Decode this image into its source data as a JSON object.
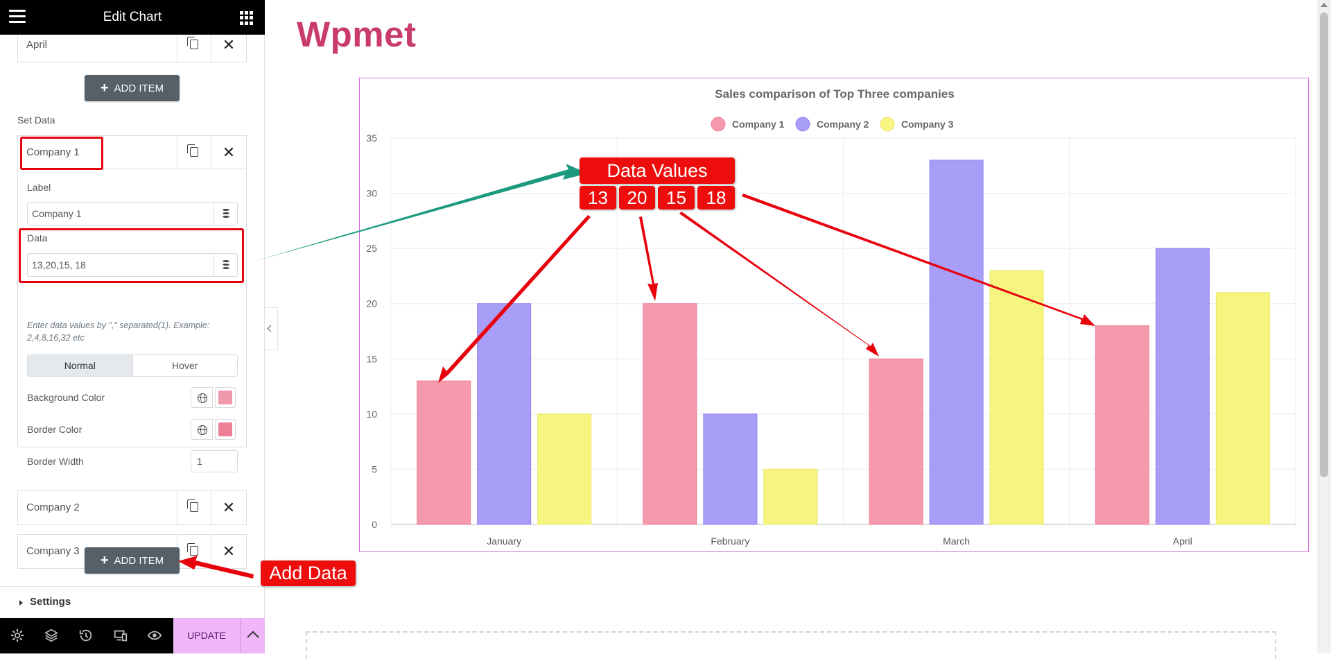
{
  "editor": {
    "title": "Edit Chart",
    "repeater_top": {
      "label": "April"
    },
    "add_item_label": "ADD ITEM",
    "set_data_heading": "Set Data",
    "active_item": {
      "header": "Company 1",
      "label_caption": "Label",
      "label_value": "Company 1",
      "data_caption": "Data",
      "data_value": "13,20,15, 18",
      "help_text": "Enter data values by \",\" separated(1). Example: 2,4,8,16,32 etc",
      "tabs": [
        "Normal",
        "Hover"
      ],
      "active_tab": "Normal",
      "background_color_label": "Background Color",
      "background_color": "#f199ac",
      "border_color_label": "Border Color",
      "border_color": "#ed7f97",
      "border_width_label": "Border Width",
      "border_width": "1"
    },
    "other_items": [
      {
        "label": "Company 2"
      },
      {
        "label": "Company 3"
      }
    ],
    "settings_label": "Settings",
    "update_label": "UPDATE"
  },
  "site": {
    "brand": "Wpmet"
  },
  "annotations": {
    "data_values_title": "Data Values",
    "data_values": [
      "13",
      "20",
      "15",
      "18"
    ],
    "add_data": "Add Data"
  },
  "chart_data": {
    "type": "bar",
    "title": "Sales comparison of Top Three companies",
    "categories": [
      "January",
      "February",
      "March",
      "April"
    ],
    "series": [
      {
        "name": "Company 1",
        "values": [
          13,
          20,
          15,
          18
        ],
        "color": "#f599ac",
        "border": "#ef7f98"
      },
      {
        "name": "Company 2",
        "values": [
          20,
          10,
          33,
          25
        ],
        "color": "#a89ef7",
        "border": "#8f82f0"
      },
      {
        "name": "Company 3",
        "values": [
          10,
          5,
          23,
          21
        ],
        "color": "#f6f57f",
        "border": "#e8e66a"
      }
    ],
    "ylim": [
      0,
      35
    ],
    "yticks": [
      "0",
      "5",
      "10",
      "15",
      "20",
      "25",
      "30",
      "35"
    ],
    "legend_position": "top",
    "grid": true
  }
}
